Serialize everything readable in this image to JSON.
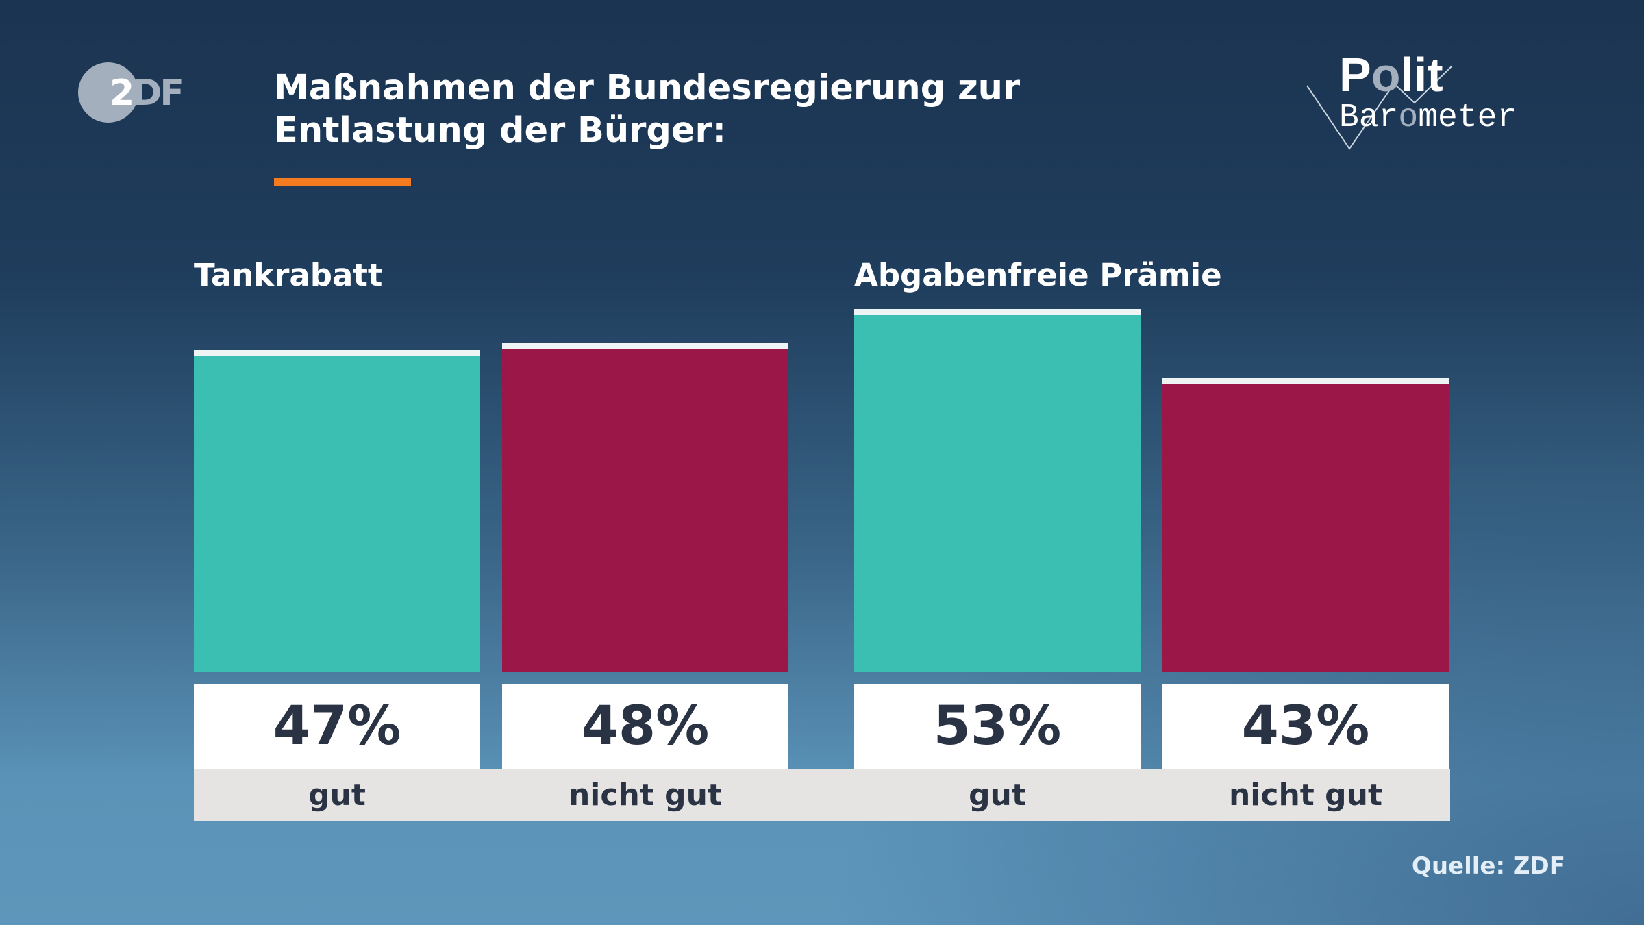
{
  "header": {
    "logo_text": "ZDF",
    "title": "Maßnahmen der Bundesregierung zur Entlastung der Bürger:",
    "brand_logo": "Polit Barometer"
  },
  "colors": {
    "accent": "#f47b20",
    "gut": "#3cbfb3",
    "nicht_gut": "#9b1748"
  },
  "chart_data": {
    "type": "bar",
    "unit": "%",
    "groups": [
      {
        "label": "Tankrabatt",
        "bars": [
          {
            "category": "gut",
            "value": 47,
            "label": "47%"
          },
          {
            "category": "nicht gut",
            "value": 48,
            "label": "48%"
          }
        ]
      },
      {
        "label": "Abgabenfreie Prämie",
        "bars": [
          {
            "category": "gut",
            "value": 53,
            "label": "53%"
          },
          {
            "category": "nicht gut",
            "value": 43,
            "label": "43%"
          }
        ]
      }
    ],
    "ylim": [
      0,
      100
    ]
  },
  "footer": {
    "source": "Quelle: ZDF"
  }
}
